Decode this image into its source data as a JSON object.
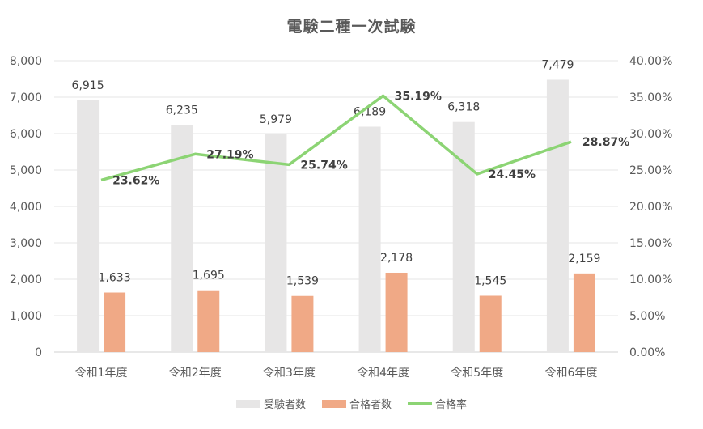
{
  "chart_data": {
    "type": "bar",
    "title": "電験二種一次試験",
    "categories": [
      "令和1年度",
      "令和2年度",
      "令和3年度",
      "令和4年度",
      "令和5年度",
      "令和6年度"
    ],
    "series": [
      {
        "name": "受験者数",
        "type": "bar",
        "axis": "left",
        "color": "#E7E6E6",
        "values": [
          6915,
          6235,
          5979,
          6189,
          6318,
          7479
        ],
        "labels": [
          "6,915",
          "6,235",
          "5,979",
          "6,189",
          "6,318",
          "7,479"
        ]
      },
      {
        "name": "合格者数",
        "type": "bar",
        "axis": "left",
        "color": "#F0A986",
        "values": [
          1633,
          1695,
          1539,
          2178,
          1545,
          2159
        ],
        "labels": [
          "1,633",
          "1,695",
          "1,539",
          "2,178",
          "1,545",
          "2,159"
        ]
      },
      {
        "name": "合格率",
        "type": "line",
        "axis": "right",
        "color": "#8CD474",
        "values": [
          0.2362,
          0.2719,
          0.2574,
          0.3519,
          0.2445,
          0.2887
        ],
        "labels": [
          "23.62%",
          "27.19%",
          "25.74%",
          "35.19%",
          "24.45%",
          "28.87%"
        ]
      }
    ],
    "xlabel": "",
    "ylabel": "",
    "ylim": [
      0,
      8000
    ],
    "y2lim": [
      0,
      0.4
    ],
    "y_ticks": [
      "0",
      "1,000",
      "2,000",
      "3,000",
      "4,000",
      "5,000",
      "6,000",
      "7,000",
      "8,000"
    ],
    "y2_ticks": [
      "0.00%",
      "5.00%",
      "10.00%",
      "15.00%",
      "20.00%",
      "25.00%",
      "30.00%",
      "35.00%",
      "40.00%"
    ],
    "grid": true,
    "legend_position": "bottom"
  },
  "legend": {
    "items": [
      {
        "label": "受験者数",
        "color": "#E7E6E6",
        "kind": "bar"
      },
      {
        "label": "合格者数",
        "color": "#F0A986",
        "kind": "bar"
      },
      {
        "label": "合格率",
        "color": "#8CD474",
        "kind": "line"
      }
    ]
  }
}
